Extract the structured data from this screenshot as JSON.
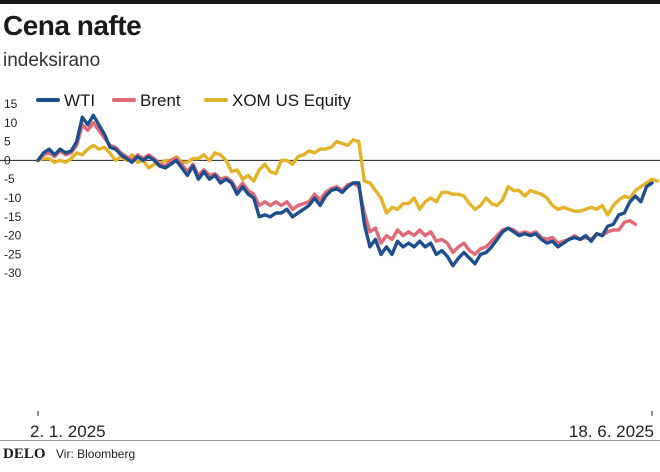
{
  "header": {
    "title": "Cena nafte",
    "subtitle": "indeksirano"
  },
  "footer": {
    "brand": "DELO",
    "source": "Vir: Bloomberg"
  },
  "chart_data": {
    "type": "line",
    "title": "Cena nafte",
    "subtitle": "indeksirano",
    "xlabel": "",
    "ylabel": "",
    "ylim": [
      -32,
      16
    ],
    "yticks": [
      15,
      10,
      5,
      0,
      -5,
      -10,
      -15,
      -20,
      -25,
      -30
    ],
    "xtick_labels": [
      "2. 1. 2025",
      "18. 6. 2025"
    ],
    "legend_position": "top",
    "colors": {
      "WTI": "#1f4e8c",
      "Brent": "#e06a75",
      "XOM US Equity": "#e3b32a",
      "zero_line": "#222222",
      "grid": "#dddddd",
      "axis_text": "#222222"
    },
    "series": [
      {
        "name": "WTI",
        "values": [
          0,
          2,
          3,
          1.5,
          3,
          2,
          2.5,
          5,
          11.5,
          9.5,
          12,
          9.5,
          7,
          3.5,
          3,
          1.5,
          0.5,
          -0.5,
          1,
          0,
          1,
          0,
          -1.5,
          -2,
          -1,
          0,
          -2,
          -4,
          -1.5,
          -5,
          -3,
          -5,
          -4,
          -6,
          -5,
          -6,
          -9,
          -7,
          -9,
          -10,
          -15,
          -14.5,
          -15,
          -14,
          -14,
          -13,
          -15,
          -14,
          -13,
          -12,
          -10,
          -12,
          -9.5,
          -8,
          -7.5,
          -8.5,
          -7,
          -6,
          -6,
          -17,
          -23,
          -21,
          -25,
          -23,
          -25,
          -21.5,
          -23,
          -22,
          -23,
          -21.5,
          -23,
          -22,
          -25,
          -24,
          -25.5,
          -28,
          -26,
          -24.5,
          -26,
          -27.5,
          -25,
          -24.5,
          -23,
          -21,
          -19,
          -18,
          -19,
          -20,
          -19.5,
          -20,
          -19.5,
          -21,
          -22,
          -21.5,
          -23,
          -22,
          -21,
          -20.5,
          -21,
          -20,
          -21.5,
          -19.5,
          -20,
          -17.5,
          -17,
          -14.5,
          -14,
          -11,
          -9.5,
          -11,
          -7,
          -6
        ]
      },
      {
        "name": "Brent",
        "values": [
          0,
          1.5,
          2,
          1,
          2.5,
          1.5,
          2,
          4,
          9.5,
          8,
          10,
          8,
          6,
          4,
          3.5,
          2,
          1,
          0,
          1.5,
          0.5,
          1.5,
          0.5,
          -1,
          -1.5,
          0,
          0.5,
          -1,
          -3,
          -1,
          -4,
          -2.5,
          -4,
          -3.5,
          -5,
          -4.5,
          -5.5,
          -8,
          -6,
          -8,
          -9,
          -12,
          -11,
          -12,
          -11,
          -12,
          -11,
          -13,
          -12,
          -11.5,
          -11,
          -9,
          -10.5,
          -8.5,
          -7.5,
          -7,
          -8,
          -6.5,
          -6,
          -7,
          -14,
          -19,
          -18,
          -22,
          -20,
          -21,
          -18.5,
          -20,
          -19,
          -20,
          -18.5,
          -20,
          -19,
          -21.5,
          -21,
          -22,
          -24.5,
          -23,
          -22,
          -24,
          -25,
          -23.5,
          -23,
          -21.5,
          -20,
          -18.5,
          -18,
          -18.5,
          -19.5,
          -19,
          -19.5,
          -19,
          -20.5,
          -21,
          -20.5,
          -22,
          -21.5,
          -21,
          -20,
          -21,
          -20.5,
          -21,
          -19.5,
          -20,
          -19,
          -18.5,
          -18.5,
          -16.5,
          -16,
          -17
        ]
      },
      {
        "name": "XOM US Equity",
        "values": [
          0,
          0.5,
          0.5,
          -0.5,
          0,
          -0.5,
          0.5,
          2,
          1.5,
          3,
          4,
          3,
          3.5,
          2,
          0,
          1,
          0,
          1.5,
          -0.5,
          0,
          -2,
          -1,
          -1,
          0,
          0,
          1,
          -0.5,
          -0.5,
          0.5,
          0.5,
          1.5,
          0,
          2,
          1.5,
          0,
          -3,
          -2.5,
          -5,
          -4,
          -5.5,
          -2.5,
          -1,
          -3,
          -3.5,
          0,
          0,
          -1,
          1,
          1.5,
          2.5,
          2,
          3,
          3,
          3.5,
          5,
          4.5,
          4,
          5.5,
          5,
          -5.5,
          -6,
          -8,
          -10,
          -14,
          -12.5,
          -13,
          -11.5,
          -11.5,
          -10,
          -13,
          -11,
          -10,
          -11,
          -8.5,
          -8.5,
          -9,
          -9,
          -9.5,
          -11.5,
          -13,
          -12,
          -10,
          -11.5,
          -12,
          -10.5,
          -7,
          -8,
          -8,
          -9.5,
          -8,
          -8.5,
          -9,
          -10,
          -12,
          -13,
          -12.5,
          -13,
          -13.5,
          -13.5,
          -13,
          -12.5,
          -13,
          -12,
          -14.5,
          -12,
          -10.5,
          -9.5,
          -10,
          -8,
          -7,
          -6,
          -5,
          -5.5
        ]
      }
    ]
  }
}
